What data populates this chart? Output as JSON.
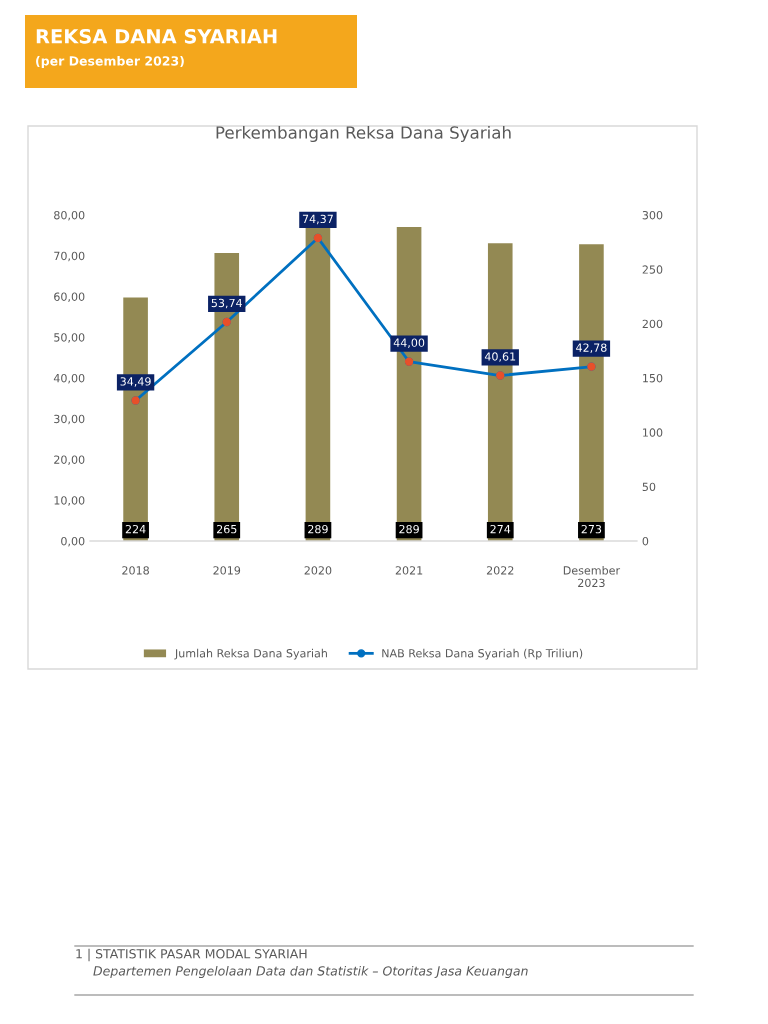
{
  "chart_data": {
    "type": "bar",
    "title": "Perkembangan Reksa Dana Syariah",
    "annotations": [
      "REKSA DANA SYARIAH",
      "(per Desember 2023)",
      "1 | STATISTIK PASAR MODAL SYARIAH",
      "Departemen Pengelolaan Data dan Statistik – Otoritas Jasa Keuangan"
    ],
    "categories": [
      "2018",
      "2019",
      "2020",
      "2021",
      "2022",
      "Desember\n2023"
    ],
    "series": [
      {
        "name": "Jumlah Reksa Dana Syariah",
        "axis": "y2",
        "color": "#938953",
        "values": [
          224,
          265,
          289,
          289,
          274,
          273
        ]
      },
      {
        "name": "NAB Reksa Dana Syariah (Rp Triliun)",
        "type": "line",
        "axis": "y",
        "color": "#0070c0",
        "colors": [
          "#e8502a",
          "#e8502a",
          "#e8502a",
          "#e8502a",
          "#e8502a",
          "#e8502a"
        ],
        "values": [
          34.49,
          53.74,
          74.37,
          44.0,
          40.61,
          42.78
        ],
        "value_labels": [
          "34,49",
          "53,74",
          "74,37",
          "44,00",
          "40,61",
          "42,78"
        ]
      }
    ],
    "ylim": [
      0,
      80
    ],
    "yticks": [
      {
        "value": 0,
        "label": "0,00"
      },
      {
        "value": 10,
        "label": "10,00"
      },
      {
        "value": 20,
        "label": "20,00"
      },
      {
        "value": 30,
        "label": "30,00"
      },
      {
        "value": 40,
        "label": "40,00"
      },
      {
        "value": 50,
        "label": "50,00"
      },
      {
        "value": 60,
        "label": "60,00"
      },
      {
        "value": 70,
        "label": "70,00"
      },
      {
        "value": 80,
        "label": "80,00"
      }
    ],
    "y2lim": [
      0,
      300
    ],
    "y2ticks": [
      0,
      50,
      100,
      150,
      200,
      250,
      300
    ],
    "data_labels": true,
    "legend": "bottom",
    "marker": "circle",
    "grid": false
  }
}
